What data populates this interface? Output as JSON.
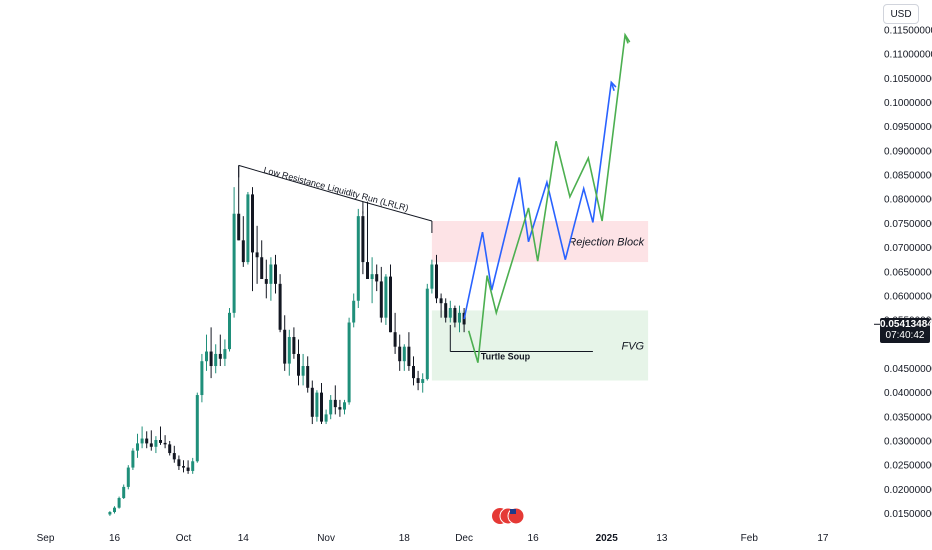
{
  "currency": "USD",
  "last_price": "0.05413484",
  "countdown": "07:40:42",
  "chart_data": {
    "type": "candlestick",
    "title": "",
    "y_axis": {
      "scale": "linear",
      "range": [
        0.012,
        0.121
      ],
      "ticks": [
        "0.11500000",
        "0.11000000",
        "0.10500000",
        "0.10000000",
        "0.09500000",
        "0.09000000",
        "0.08500000",
        "0.08000000",
        "0.07500000",
        "0.07000000",
        "0.06500000",
        "0.06000000",
        "0.05500000",
        "0.04500000",
        "0.04000000",
        "0.03500000",
        "0.03000000",
        "0.02500000",
        "0.02000000",
        "0.01500000"
      ],
      "position": "right"
    },
    "x_axis": {
      "ticks": [
        {
          "label": "Sep",
          "day": 0
        },
        {
          "label": "16",
          "day": 15
        },
        {
          "label": "Oct",
          "day": 30
        },
        {
          "label": "14",
          "day": 43
        },
        {
          "label": "Nov",
          "day": 61
        },
        {
          "label": "18",
          "day": 78
        },
        {
          "label": "Dec",
          "day": 91
        },
        {
          "label": "16",
          "day": 106
        },
        {
          "label": "2025",
          "day": 122,
          "bold": true
        },
        {
          "label": "13",
          "day": 134
        },
        {
          "label": "Feb",
          "day": 153
        },
        {
          "label": "17",
          "day": 169
        }
      ]
    },
    "candles": [
      [
        14.0,
        0.0148,
        0.0155,
        0.0145,
        0.0153
      ],
      [
        15.0,
        0.0153,
        0.0165,
        0.015,
        0.0162
      ],
      [
        16.0,
        0.0162,
        0.0185,
        0.016,
        0.0182
      ],
      [
        17.0,
        0.0182,
        0.021,
        0.018,
        0.0205
      ],
      [
        18.0,
        0.0205,
        0.025,
        0.02,
        0.0245
      ],
      [
        19.0,
        0.0245,
        0.0285,
        0.024,
        0.028
      ],
      [
        20.0,
        0.028,
        0.0315,
        0.0265,
        0.0295
      ],
      [
        21.0,
        0.0295,
        0.033,
        0.0285,
        0.0305
      ],
      [
        22.0,
        0.0305,
        0.032,
        0.0285,
        0.0295
      ],
      [
        23.0,
        0.0295,
        0.0322,
        0.028,
        0.0288
      ],
      [
        24.0,
        0.0288,
        0.031,
        0.0275,
        0.0302
      ],
      [
        25.0,
        0.0302,
        0.033,
        0.0292,
        0.0296
      ],
      [
        26.0,
        0.0296,
        0.0312,
        0.0285,
        0.0293
      ],
      [
        27.0,
        0.0293,
        0.03,
        0.027,
        0.0275
      ],
      [
        28.0,
        0.0275,
        0.029,
        0.0255,
        0.0262
      ],
      [
        29.0,
        0.0262,
        0.027,
        0.024,
        0.0248
      ],
      [
        30.0,
        0.0248,
        0.026,
        0.0235,
        0.0245
      ],
      [
        31.0,
        0.0245,
        0.026,
        0.0232,
        0.0238
      ],
      [
        32.0,
        0.0238,
        0.0265,
        0.0232,
        0.0258
      ],
      [
        33.0,
        0.0258,
        0.04,
        0.0255,
        0.0395
      ],
      [
        34.0,
        0.0395,
        0.048,
        0.038,
        0.0465
      ],
      [
        35.0,
        0.0465,
        0.052,
        0.0445,
        0.0485
      ],
      [
        36.0,
        0.0485,
        0.0535,
        0.043,
        0.0455
      ],
      [
        37.0,
        0.0455,
        0.05,
        0.044,
        0.048
      ],
      [
        38.0,
        0.048,
        0.052,
        0.0455,
        0.047
      ],
      [
        39.0,
        0.047,
        0.051,
        0.0455,
        0.049
      ],
      [
        40.0,
        0.049,
        0.0575,
        0.0485,
        0.0565
      ],
      [
        41.0,
        0.0565,
        0.0825,
        0.0555,
        0.077
      ],
      [
        42.0,
        0.077,
        0.087,
        0.0715,
        0.0715
      ],
      [
        43.0,
        0.0715,
        0.0765,
        0.066,
        0.067
      ],
      [
        44.0,
        0.067,
        0.0815,
        0.0665,
        0.081
      ],
      [
        45.0,
        0.081,
        0.0825,
        0.061,
        0.069
      ],
      [
        46.0,
        0.069,
        0.0745,
        0.0625,
        0.068
      ],
      [
        47.0,
        0.068,
        0.0715,
        0.0635,
        0.0635
      ],
      [
        48.0,
        0.0635,
        0.0675,
        0.0595,
        0.0625
      ],
      [
        49.0,
        0.0625,
        0.068,
        0.059,
        0.0665
      ],
      [
        50.0,
        0.0665,
        0.0685,
        0.0605,
        0.0625
      ],
      [
        51.0,
        0.0625,
        0.0645,
        0.0525,
        0.053
      ],
      [
        52.0,
        0.053,
        0.056,
        0.0445,
        0.046
      ],
      [
        53.0,
        0.046,
        0.053,
        0.0435,
        0.0515
      ],
      [
        54.0,
        0.0515,
        0.0535,
        0.047,
        0.048
      ],
      [
        55.0,
        0.048,
        0.051,
        0.0415,
        0.0435
      ],
      [
        56.0,
        0.0435,
        0.048,
        0.0415,
        0.0455
      ],
      [
        57.0,
        0.0455,
        0.0475,
        0.04,
        0.041
      ],
      [
        58.0,
        0.041,
        0.0425,
        0.0335,
        0.035
      ],
      [
        59.0,
        0.035,
        0.0405,
        0.034,
        0.04
      ],
      [
        60.0,
        0.04,
        0.042,
        0.0335,
        0.034
      ],
      [
        61.0,
        0.034,
        0.0365,
        0.0335,
        0.0355
      ],
      [
        62.0,
        0.0355,
        0.0395,
        0.0345,
        0.0385
      ],
      [
        63.0,
        0.0385,
        0.0415,
        0.0355,
        0.037
      ],
      [
        64.0,
        0.037,
        0.0385,
        0.035,
        0.0365
      ],
      [
        65.0,
        0.0365,
        0.0385,
        0.0355,
        0.038
      ],
      [
        66.0,
        0.038,
        0.0555,
        0.0375,
        0.0545
      ],
      [
        67.0,
        0.0545,
        0.0605,
        0.0535,
        0.059
      ],
      [
        68.0,
        0.059,
        0.078,
        0.0575,
        0.0765
      ],
      [
        69.0,
        0.0765,
        0.0775,
        0.0645,
        0.067
      ],
      [
        70.0,
        0.067,
        0.0795,
        0.0635,
        0.0635
      ],
      [
        71.0,
        0.0635,
        0.068,
        0.0585,
        0.0645
      ],
      [
        72.0,
        0.0645,
        0.0665,
        0.061,
        0.063
      ],
      [
        73.0,
        0.063,
        0.066,
        0.0545,
        0.0555
      ],
      [
        74.0,
        0.0555,
        0.0645,
        0.054,
        0.064
      ],
      [
        75.0,
        0.064,
        0.0665,
        0.0525,
        0.0525
      ],
      [
        76.0,
        0.0525,
        0.0565,
        0.048,
        0.0495
      ],
      [
        77.0,
        0.0495,
        0.052,
        0.0445,
        0.0465
      ],
      [
        78.0,
        0.0465,
        0.05,
        0.0445,
        0.0495
      ],
      [
        79.0,
        0.0495,
        0.0525,
        0.0445,
        0.0455
      ],
      [
        80.0,
        0.0455,
        0.0475,
        0.0415,
        0.043
      ],
      [
        81.0,
        0.043,
        0.0445,
        0.0405,
        0.042
      ],
      [
        82.0,
        0.042,
        0.044,
        0.04,
        0.0428
      ],
      [
        83.0,
        0.0428,
        0.0625,
        0.0425,
        0.0615
      ],
      [
        84.0,
        0.0615,
        0.0675,
        0.0605,
        0.0665
      ],
      [
        85.0,
        0.0665,
        0.0685,
        0.0585,
        0.0595
      ],
      [
        86.0,
        0.0595,
        0.0605,
        0.0555,
        0.0585
      ],
      [
        87.0,
        0.0585,
        0.0595,
        0.0545,
        0.0555
      ],
      [
        88.0,
        0.0555,
        0.059,
        0.0545,
        0.0575
      ],
      [
        89.0,
        0.0575,
        0.058,
        0.0535,
        0.0545
      ],
      [
        90.0,
        0.0545,
        0.058,
        0.0525,
        0.0565
      ],
      [
        91.0,
        0.0565,
        0.0575,
        0.0525,
        0.0541
      ]
    ],
    "zones": [
      {
        "label": "Rejection Block",
        "day_start": 84,
        "day_end": 131,
        "price_top": 0.0755,
        "price_bottom": 0.067,
        "color": "#fde3e6"
      },
      {
        "label": "FVG",
        "day_start": 84,
        "day_end": 131,
        "price_top": 0.057,
        "price_bottom": 0.0425,
        "color": "#e6f4e8"
      }
    ],
    "annotations": [
      {
        "label": "Low Resistance Liquidity Run (LRLR)",
        "points": [
          [
            42,
            0.087
          ],
          [
            69,
            0.0795
          ],
          [
            84,
            0.0755
          ]
        ],
        "text_day": 63,
        "text_price": 0.0815,
        "rotation": 15
      },
      {
        "label": "Turtle Soup",
        "hline": {
          "day_start": 88,
          "day_end": 119,
          "price": 0.0485
        },
        "drop": {
          "day": 88,
          "price_from": 0.054
        },
        "text_day": 100,
        "text_price": 0.0468
      }
    ],
    "projections": [
      {
        "color": "#2962ff",
        "points": [
          [
            91,
            0.0552
          ],
          [
            95,
            0.0732
          ],
          [
            97,
            0.0612
          ],
          [
            103,
            0.0845
          ],
          [
            105,
            0.0712
          ],
          [
            109,
            0.0835
          ],
          [
            113,
            0.0675
          ],
          [
            117,
            0.0822
          ],
          [
            119,
            0.0752
          ],
          [
            123,
            0.1042
          ],
          [
            124,
            0.1032
          ]
        ]
      },
      {
        "color": "#4caf50",
        "points": [
          [
            92,
            0.0528
          ],
          [
            94,
            0.0462
          ],
          [
            96,
            0.0642
          ],
          [
            98,
            0.0565
          ],
          [
            105,
            0.0782
          ],
          [
            107,
            0.0672
          ],
          [
            111,
            0.092
          ],
          [
            114,
            0.0805
          ],
          [
            118,
            0.0885
          ],
          [
            121,
            0.0755
          ],
          [
            126,
            0.114
          ],
          [
            127,
            0.1125
          ]
        ]
      }
    ]
  }
}
